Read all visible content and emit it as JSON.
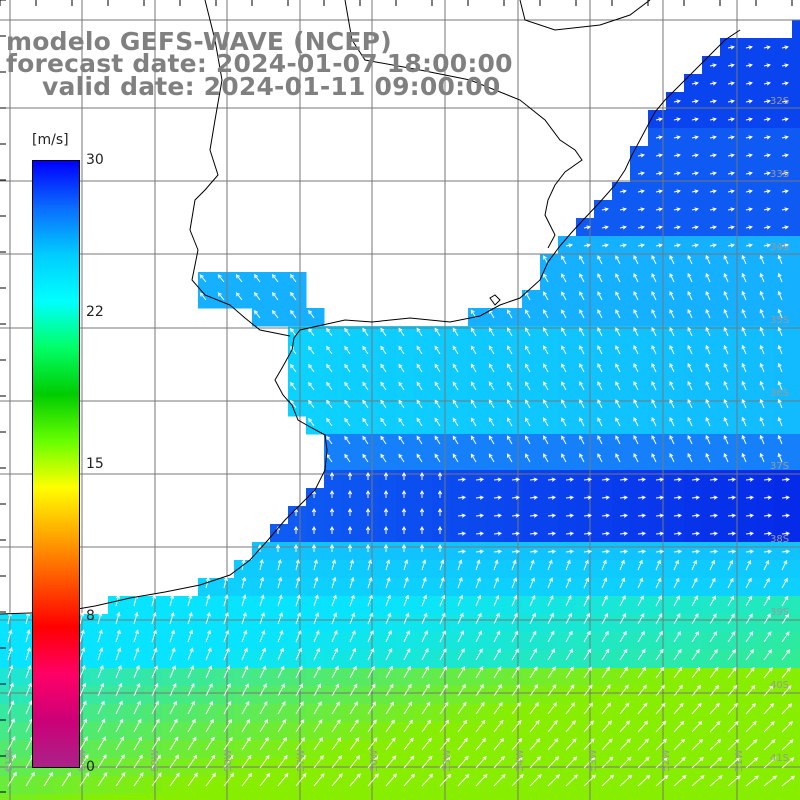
{
  "title": {
    "line1": "modelo GEFS-WAVE (NCEP)",
    "line2": "forecast date: 2024-01-07 18:00:00",
    "line3": "valid date: 2024-01-11 09:00:00"
  },
  "colorbar": {
    "units": "[m/s]",
    "ticks": [
      "30",
      "22",
      "15",
      "8",
      "0"
    ],
    "tick_values": [
      30,
      22,
      15,
      8,
      0
    ],
    "colors": [
      "#0000ff",
      "#0a6cff",
      "#00ccff",
      "#00ffff",
      "#00ff66",
      "#00cc00",
      "#66ff00",
      "#ffff00",
      "#ffaa00",
      "#ff5500",
      "#ff0000",
      "#ff0066",
      "#cc0077",
      "#aa2288"
    ]
  },
  "lat_labels": [
    "32S",
    "33S",
    "34S",
    "35S",
    "36S",
    "37S",
    "38S",
    "39S",
    "40S",
    "41S"
  ],
  "lon_labels": [
    "61W",
    "60W",
    "59W",
    "58W",
    "57W",
    "56W",
    "55W",
    "54W",
    "53W",
    "52W",
    "51W"
  ],
  "map_style": {
    "ocean_calm": "#0a44ee",
    "ocean_mid": "#1a9aff",
    "ocean_cyan": "#08e4ff",
    "ocean_strong": "#44ee66",
    "land": "#ffffff",
    "grid": "#777777",
    "coast": "#000000",
    "arrow": "#ffffff"
  }
}
